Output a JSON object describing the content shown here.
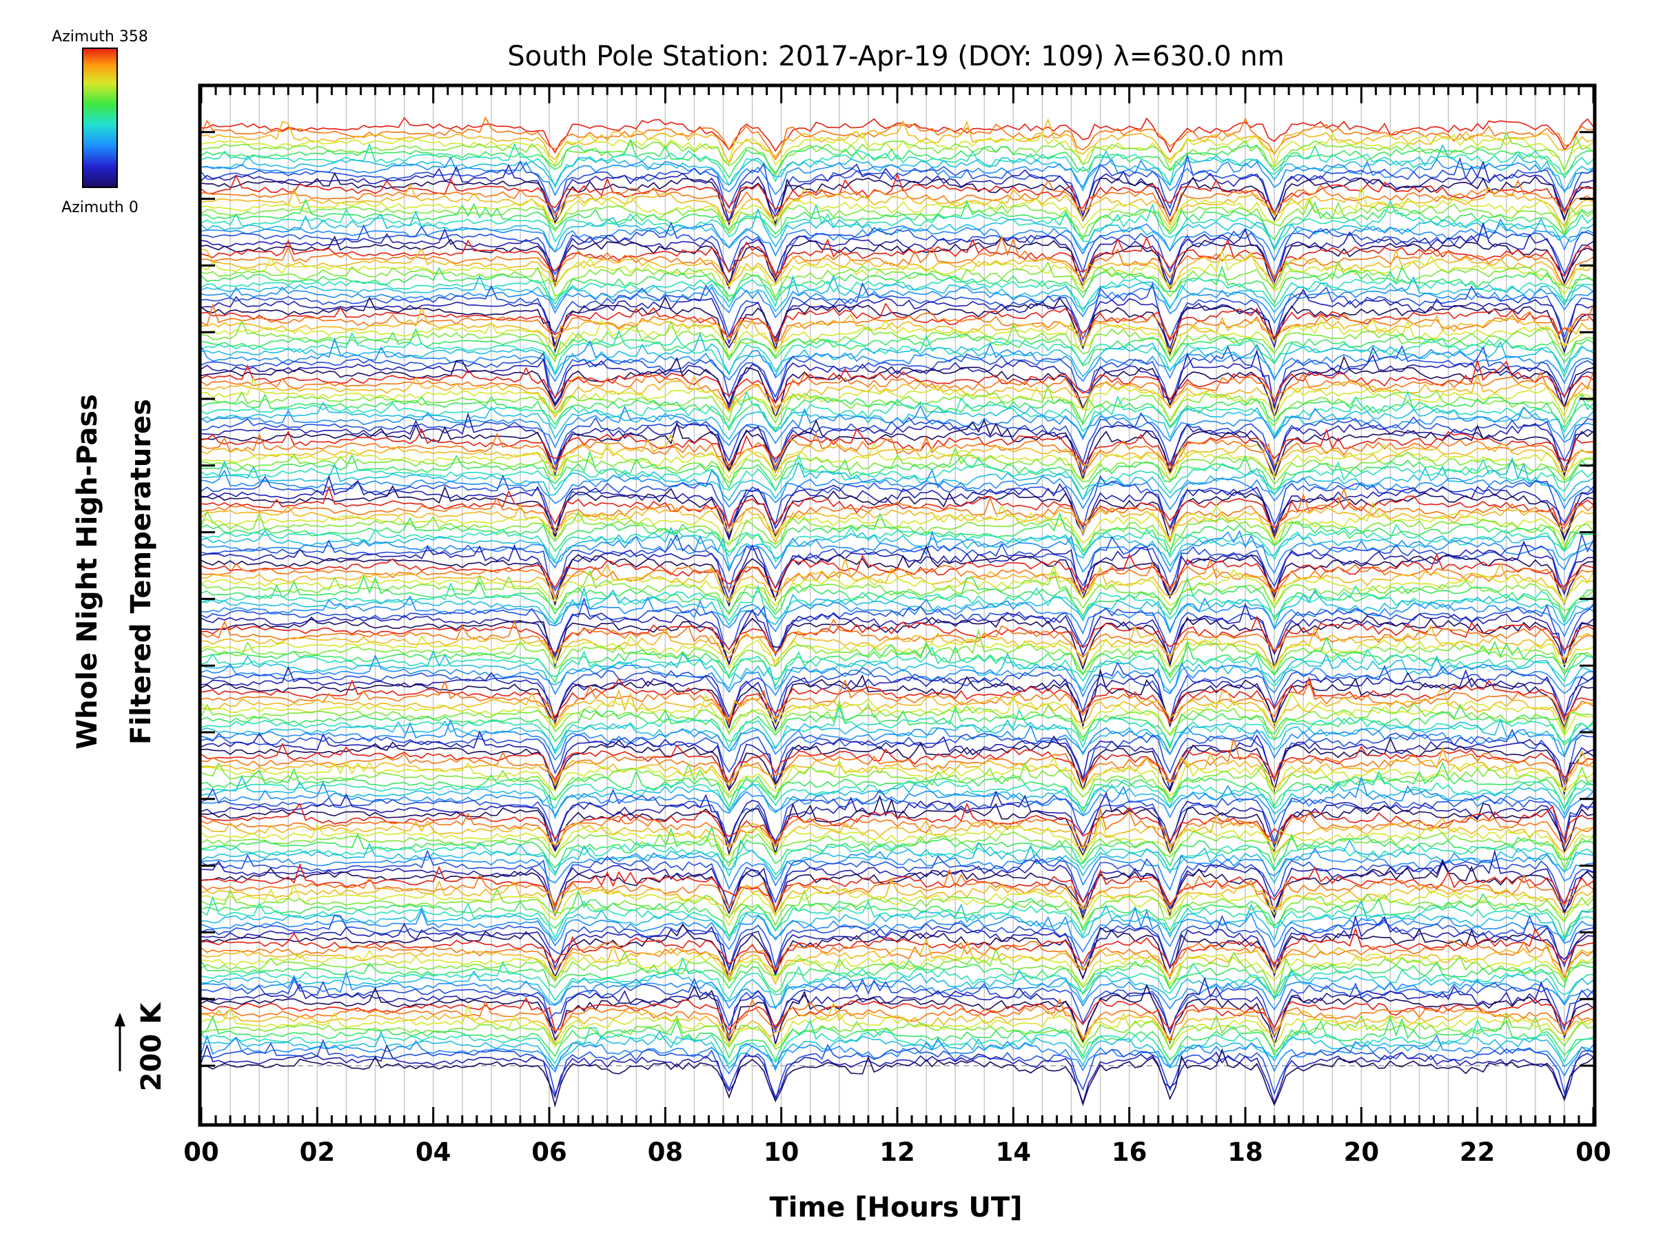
{
  "chart_data": {
    "type": "line",
    "title": "South Pole Station: 2017-Apr-19 (DOY: 109) λ=630.0 nm",
    "xlabel": "Time [Hours UT]",
    "ylabel_lines": [
      "Whole Night High-Pass",
      "Filtered Temperatures"
    ],
    "scale_label": "200 K",
    "colorbar": {
      "top_label": "Azimuth 358",
      "bottom_label": "Azimuth 0",
      "min": 0,
      "max": 358
    },
    "x_tick_labels": [
      "00",
      "02",
      "04",
      "06",
      "08",
      "10",
      "12",
      "14",
      "16",
      "18",
      "20",
      "22",
      "00"
    ],
    "xlim": [
      0,
      24
    ],
    "grid": true,
    "series_groups": 15,
    "series_per_group": 12,
    "dip_times_ut": [
      6.1,
      9.1,
      9.9,
      15.2,
      16.7,
      18.5,
      23.5
    ],
    "colors": {
      "axis": "#000000",
      "grid": "#c8c8c8",
      "baseline": "#b4b4b4",
      "background": "#ffffff"
    }
  }
}
